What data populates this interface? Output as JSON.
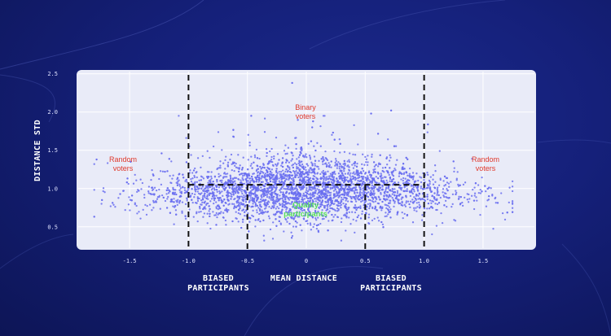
{
  "chart_data": {
    "type": "scatter",
    "xlabel": "MEAN DISTANCE",
    "ylabel": "DISTANCE STD",
    "xlim": [
      -1.95,
      1.95
    ],
    "ylim": [
      0.2,
      2.55
    ],
    "x_ticks": [
      "-1.5",
      "-1.0",
      "-0.5",
      "0",
      "0.5",
      "1.0",
      "1.5"
    ],
    "x_tick_values": [
      -1.5,
      -1.0,
      -0.5,
      0,
      0.5,
      1.0,
      1.5
    ],
    "y_ticks": [
      "0.5",
      "1.0",
      "1.5",
      "2.0",
      "2.5"
    ],
    "y_tick_values": [
      0.5,
      1.0,
      1.5,
      2.0,
      2.5
    ],
    "grid": true,
    "point_color": "#6a6ff0",
    "vertical_dashed_lines_x": [
      -1.0,
      -0.5,
      0.5,
      1.0
    ],
    "horizontal_dashed_line_y": 1.05,
    "horizontal_dashed_line_x_range": [
      -1.0,
      1.0
    ],
    "region_labels": {
      "random_left": [
        "Random",
        "voters"
      ],
      "random_right": [
        "Random",
        "voters"
      ],
      "binary": [
        "Binary",
        "voters"
      ],
      "quality": [
        "Quality",
        "participants"
      ],
      "biased_left": [
        "BIASED",
        "PARTICIPANTS"
      ],
      "biased_right": [
        "BIASED",
        "PARTICIPANTS"
      ]
    },
    "distribution": {
      "points": 4000,
      "x_mean": 0.0,
      "x_sd": 0.62,
      "y_mean": 0.85,
      "y_sd": 0.2,
      "y_arc_strength": 0.14
    },
    "outliers": [
      [
        -1.78,
        1.38
      ],
      [
        -1.2,
        1.22
      ],
      [
        -0.62,
        1.68
      ],
      [
        -0.12,
        2.38
      ],
      [
        0.55,
        1.98
      ],
      [
        0.72,
        2.02
      ],
      [
        0.05,
        1.8
      ],
      [
        1.55,
        0.9
      ]
    ]
  },
  "colors": {
    "plot_bg": "#e9ebf8",
    "dash": "#111111",
    "random_voters": "#e0392c",
    "quality_participants": "#57e05a"
  }
}
